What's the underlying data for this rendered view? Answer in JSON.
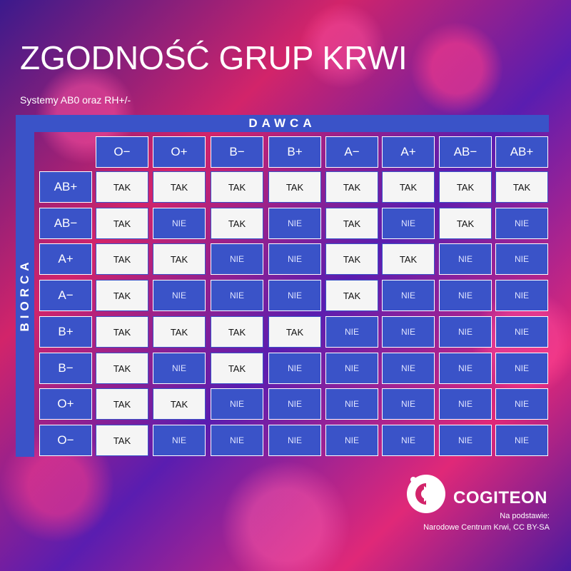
{
  "title": "ZGODNOŚĆ GRUP KRWI",
  "subtitle": "Systemy AB0 oraz RH+/-",
  "donor_label": "DAWCA",
  "recipient_label": "BIORCA",
  "donor_groups": [
    "O−",
    "O+",
    "B−",
    "B+",
    "A−",
    "A+",
    "AB−",
    "AB+"
  ],
  "recipient_groups": [
    "AB+",
    "AB−",
    "A+",
    "A−",
    "B+",
    "B−",
    "O+",
    "O−"
  ],
  "matrix": [
    [
      "TAK",
      "TAK",
      "TAK",
      "TAK",
      "TAK",
      "TAK",
      "TAK",
      "TAK"
    ],
    [
      "TAK",
      "NIE",
      "TAK",
      "NIE",
      "TAK",
      "NIE",
      "TAK",
      "NIE"
    ],
    [
      "TAK",
      "TAK",
      "NIE",
      "NIE",
      "TAK",
      "TAK",
      "NIE",
      "NIE"
    ],
    [
      "TAK",
      "NIE",
      "NIE",
      "NIE",
      "TAK",
      "NIE",
      "NIE",
      "NIE"
    ],
    [
      "TAK",
      "TAK",
      "TAK",
      "TAK",
      "NIE",
      "NIE",
      "NIE",
      "NIE"
    ],
    [
      "TAK",
      "NIE",
      "TAK",
      "NIE",
      "NIE",
      "NIE",
      "NIE",
      "NIE"
    ],
    [
      "TAK",
      "TAK",
      "NIE",
      "NIE",
      "NIE",
      "NIE",
      "NIE",
      "NIE"
    ],
    [
      "TAK",
      "NIE",
      "NIE",
      "NIE",
      "NIE",
      "NIE",
      "NIE",
      "NIE"
    ]
  ],
  "brand": "COGITEON",
  "logo_icon": "cogiteon-logo-icon",
  "source_label": "Na podstawie:",
  "source_text": "Narodowe Centrum Krwi, CC BY-SA",
  "colors": {
    "cell_blue": "#3a53c8",
    "cell_white": "#f5f5f5",
    "background_magenta": "#d2246a",
    "background_purple": "#4a1aa0"
  }
}
